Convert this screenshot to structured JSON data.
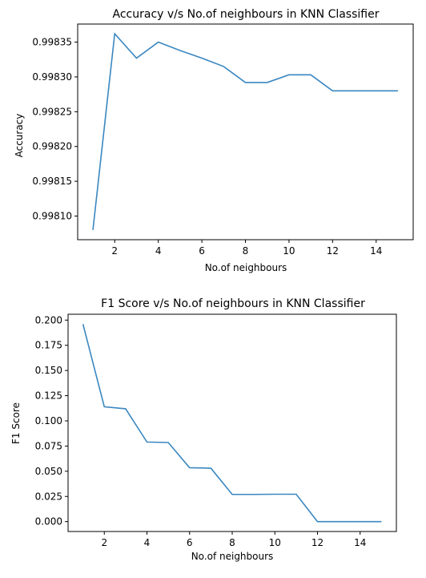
{
  "chart_data": [
    {
      "type": "line",
      "title": "Accuracy v/s No.of neighbours in KNN Classifier",
      "xlabel": "No.of neighbours",
      "ylabel": "Accuracy",
      "x": [
        1,
        2,
        3,
        4,
        5,
        6,
        7,
        8,
        9,
        10,
        11,
        12,
        13,
        14,
        15
      ],
      "series": [
        {
          "values": [
            0.99808,
            0.998362,
            0.998327,
            0.99835,
            0.998338,
            0.998327,
            0.998315,
            0.998292,
            0.998292,
            0.998303,
            0.998303,
            0.99828,
            0.99828,
            0.99828,
            0.99828
          ]
        }
      ],
      "xlim": [
        0.3,
        15.7
      ],
      "ylim": [
        0.998066,
        0.998376
      ],
      "xticks": [
        2,
        4,
        6,
        8,
        10,
        12,
        14
      ],
      "xtick_labels": [
        "2",
        "4",
        "6",
        "8",
        "10",
        "12",
        "14"
      ],
      "yticks": [
        0.9981,
        0.99815,
        0.9982,
        0.99825,
        0.9983,
        0.99835
      ],
      "ytick_labels": [
        "0.99810",
        "0.99815",
        "0.99820",
        "0.99825",
        "0.99830",
        "0.99835"
      ],
      "grid": false,
      "line_color": "#3a87c0"
    },
    {
      "type": "line",
      "title": "F1 Score v/s No.of neighbours in KNN Classifier",
      "xlabel": "No.of neighbours",
      "ylabel": "F1 Score",
      "x": [
        1,
        2,
        3,
        4,
        5,
        6,
        7,
        8,
        9,
        10,
        11,
        12,
        13,
        14,
        15
      ],
      "series": [
        {
          "values": [
            0.196,
            0.114,
            0.112,
            0.079,
            0.0785,
            0.0535,
            0.053,
            0.027,
            0.027,
            0.0272,
            0.0272,
            0.0,
            0.0,
            0.0,
            0.0
          ]
        }
      ],
      "xlim": [
        0.3,
        15.7
      ],
      "ylim": [
        -0.0098,
        0.2058
      ],
      "xticks": [
        2,
        4,
        6,
        8,
        10,
        12,
        14
      ],
      "xtick_labels": [
        "2",
        "4",
        "6",
        "8",
        "10",
        "12",
        "14"
      ],
      "yticks": [
        0.0,
        0.025,
        0.05,
        0.075,
        0.1,
        0.125,
        0.15,
        0.175,
        0.2
      ],
      "ytick_labels": [
        "0.000",
        "0.025",
        "0.050",
        "0.075",
        "0.100",
        "0.125",
        "0.150",
        "0.175",
        "0.200"
      ],
      "grid": false,
      "line_color": "#3a87c0"
    }
  ]
}
